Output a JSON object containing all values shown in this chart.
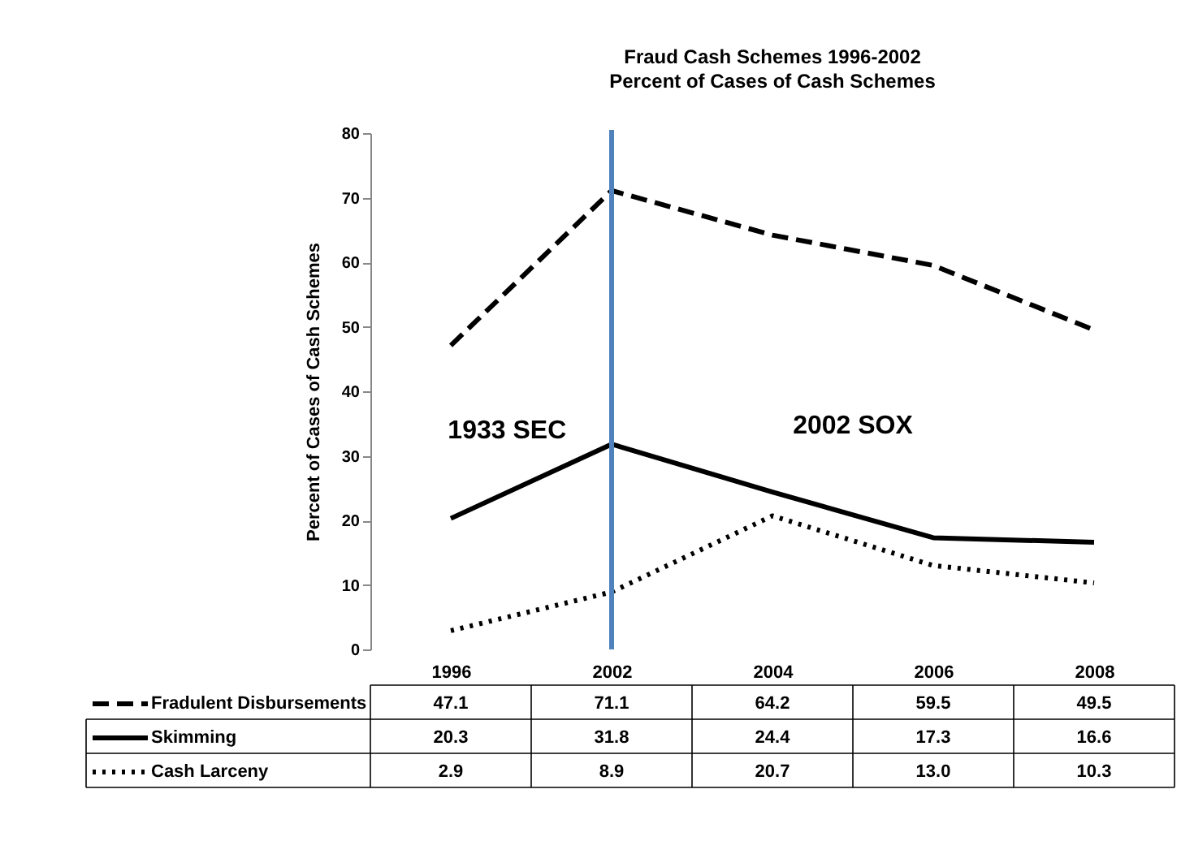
{
  "chart_data": {
    "type": "line",
    "title": "Fraud Cash Schemes 1996-2002",
    "subtitle": "Percent of Cases of Cash Schemes",
    "ylabel": "Percent of Cases of Cash Schemes",
    "categories": [
      "1996",
      "2002",
      "2004",
      "2006",
      "2008"
    ],
    "series": [
      {
        "name": "Fradulent Disbursements",
        "color": "#000000",
        "line_style": "dashed",
        "values": [
          47.1,
          71.1,
          64.2,
          59.5,
          49.5
        ],
        "value_labels": [
          "47.1",
          "71.1",
          "64.2",
          "59.5",
          "49.5"
        ]
      },
      {
        "name": "Skimming",
        "color": "#000000",
        "line_style": "solid",
        "values": [
          20.3,
          31.8,
          24.4,
          17.3,
          16.6
        ],
        "value_labels": [
          "20.3",
          "31.8",
          "24.4",
          "17.3",
          "16.6"
        ]
      },
      {
        "name": "Cash Larceny",
        "color": "#000000",
        "line_style": "dotted",
        "values": [
          2.9,
          8.9,
          20.7,
          13.0,
          10.3
        ],
        "value_labels": [
          "2.9",
          "8.9",
          "20.7",
          "13.0",
          "10.3"
        ]
      }
    ],
    "legend": "bottom",
    "ylim": [
      0,
      80
    ],
    "yticks": [
      0,
      10,
      20,
      30,
      40,
      50,
      60,
      70,
      80
    ],
    "grid": false,
    "marker": "none",
    "ref_lines": [
      {
        "axis": "x",
        "value": "2002",
        "color": "#4f81bd"
      }
    ],
    "annotations": [
      "1933 SEC",
      "2002 SOX"
    ]
  }
}
